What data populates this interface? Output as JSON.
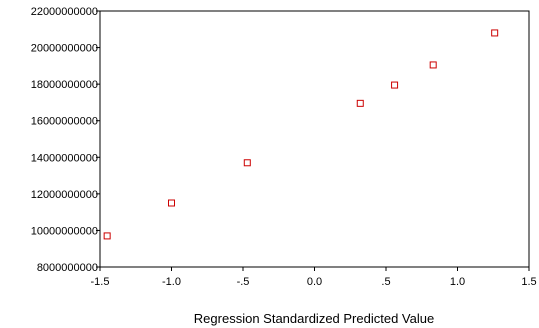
{
  "chart_data": {
    "type": "scatter",
    "title": "",
    "xlabel": "Regression Standardized Predicted Value",
    "ylabel": "",
    "xlim": [
      -1.5,
      1.5
    ],
    "ylim": [
      8000000000,
      22000000000
    ],
    "x_ticks": [
      -1.5,
      -1.0,
      -0.5,
      0.0,
      0.5,
      1.0,
      1.5
    ],
    "x_tick_labels": [
      "-1.5",
      "-1.0",
      "-.5",
      "0.0",
      ".5",
      "1.0",
      "1.5"
    ],
    "y_ticks": [
      8000000000,
      10000000000,
      12000000000,
      14000000000,
      16000000000,
      18000000000,
      20000000000,
      22000000000
    ],
    "y_tick_labels": [
      "8000000000",
      "10000000000",
      "12000000000",
      "14000000000",
      "16000000000",
      "18000000000",
      "20000000000",
      "22000000000"
    ],
    "grid": false,
    "marker": "open-square",
    "marker_color": "#cc0000",
    "points": [
      {
        "x": -1.45,
        "y": 9700000000
      },
      {
        "x": -1.0,
        "y": 11500000000
      },
      {
        "x": -0.47,
        "y": 13700000000
      },
      {
        "x": 0.32,
        "y": 16950000000
      },
      {
        "x": 0.56,
        "y": 17950000000
      },
      {
        "x": 0.83,
        "y": 19050000000
      },
      {
        "x": 1.26,
        "y": 20800000000
      }
    ]
  }
}
